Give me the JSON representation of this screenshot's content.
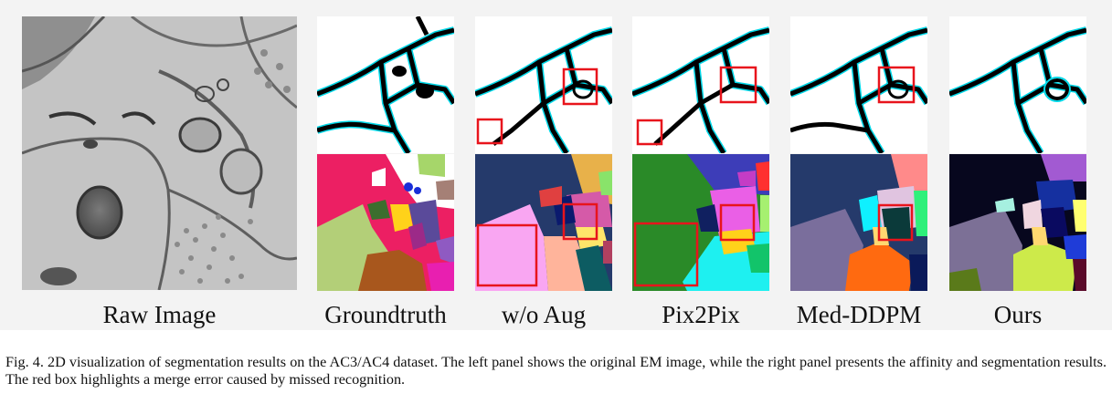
{
  "figure": {
    "raw_label": "Raw Image",
    "columns": [
      {
        "key": "gt",
        "label": "Groundtruth",
        "red_boxes": false
      },
      {
        "key": "woaug",
        "label": "w/o Aug",
        "red_boxes": true
      },
      {
        "key": "pix",
        "label": "Pix2Pix",
        "red_boxes": true
      },
      {
        "key": "ddpm",
        "label": "Med-DDPM",
        "red_boxes": true
      },
      {
        "key": "ours",
        "label": "Ours",
        "red_boxes": false
      }
    ],
    "highlight_color": "#e8141c",
    "affinity_colors": {
      "membrane": "#000000",
      "edge": "#00d8e8",
      "background": "#ffffff"
    }
  },
  "caption": {
    "text": "Fig. 4.  2D visualization of segmentation results on the AC3/AC4 dataset. The left panel shows the original EM image, while the right panel presents the affinity and segmentation results. The red box highlights a merge error caused by missed recognition."
  }
}
